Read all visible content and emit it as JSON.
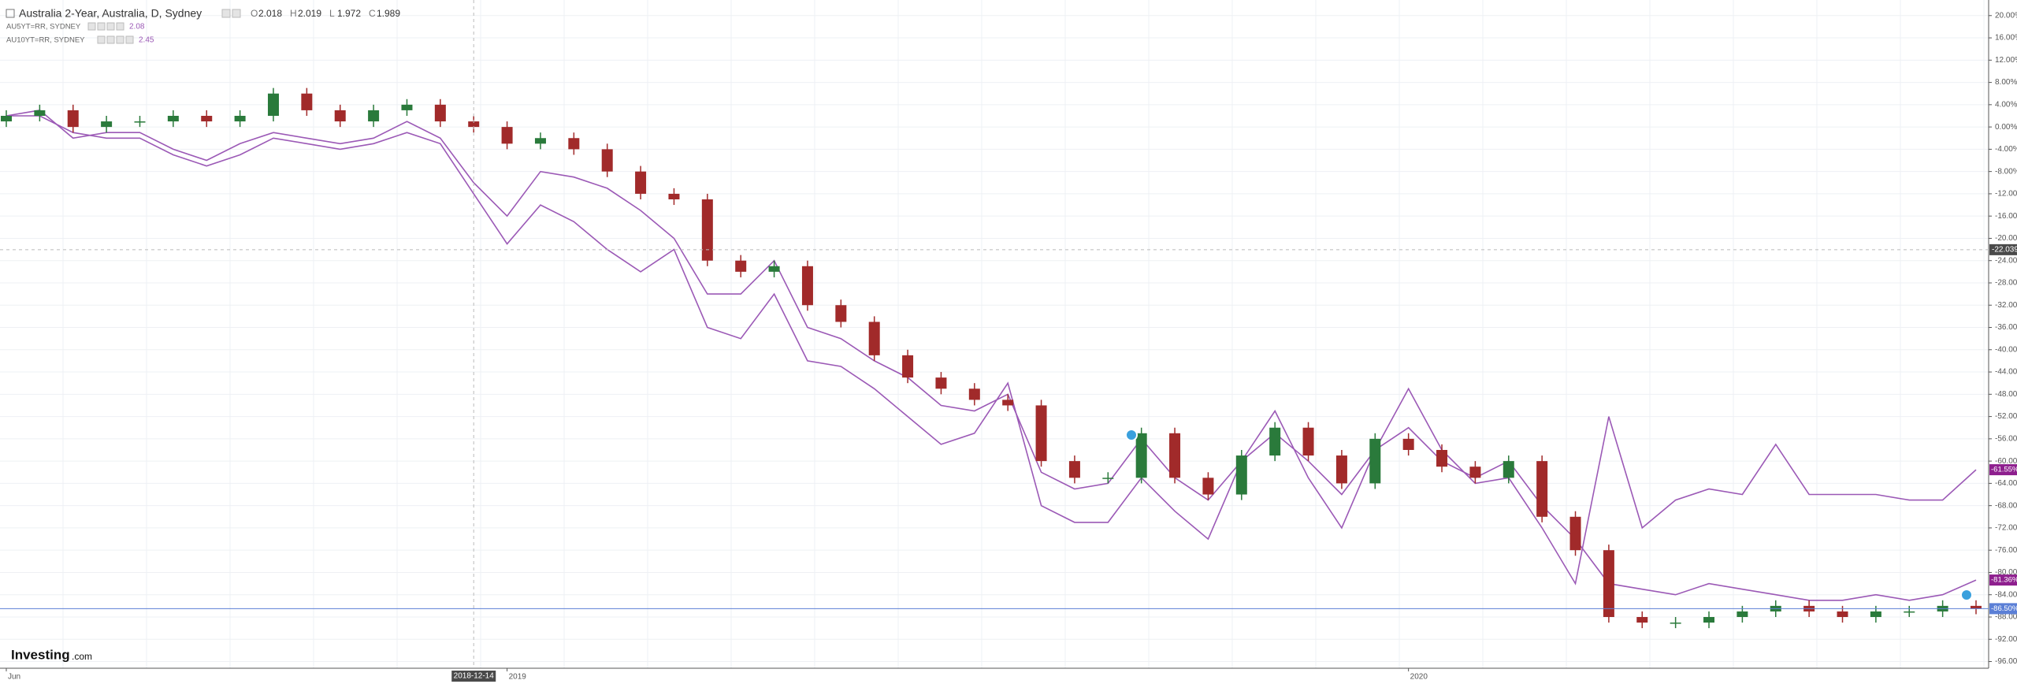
{
  "chart_data": {
    "type": "candlestick",
    "title": "Australia 2-Year, Australia, D, Sydney",
    "ohlc_header": [
      {
        "label": "O",
        "value": 2.018
      },
      {
        "label": "H",
        "value": 2.019
      },
      {
        "label": "L",
        "value": 1.972
      },
      {
        "label": "C",
        "value": 1.989
      }
    ],
    "categories": [
      "Jun",
      null,
      null,
      null,
      null,
      null,
      null,
      null,
      null,
      null,
      null,
      null,
      null,
      null,
      "2018-12-14",
      "2019",
      null,
      null,
      null,
      null,
      null,
      null,
      null,
      null,
      null,
      null,
      null,
      null,
      null,
      null,
      null,
      null,
      null,
      null,
      null,
      null,
      null,
      null,
      null,
      null,
      null,
      null,
      "2020",
      null,
      null,
      null,
      null,
      null,
      null,
      null,
      null,
      null,
      null,
      null,
      null,
      null,
      null,
      null,
      null,
      null
    ],
    "candles": {
      "open": [
        1,
        2,
        3,
        0,
        1,
        1,
        2,
        1,
        2,
        6,
        3,
        1,
        3,
        4,
        1,
        0,
        -3,
        -2,
        -4,
        -8,
        -12,
        -13,
        -24,
        -26,
        -25,
        -32,
        -35,
        -41,
        -45,
        -47,
        -49,
        -50,
        -60,
        -63,
        -63,
        -55,
        -63,
        -66,
        -59,
        -54,
        -59,
        -64,
        -56,
        -58,
        -61,
        -63,
        -60,
        -70,
        -76,
        -88,
        -89,
        -89,
        -88,
        -87,
        -86,
        -87,
        -88,
        -87,
        -87,
        -86
      ],
      "high": [
        3,
        4,
        4,
        2,
        2,
        3,
        3,
        3,
        7,
        7,
        4,
        4,
        5,
        5,
        2,
        1,
        -1,
        -1,
        -3,
        -7,
        -11,
        -12,
        -23,
        -24,
        -24,
        -31,
        -34,
        -40,
        -44,
        -46,
        -48,
        -49,
        -59,
        -62,
        -54,
        -54,
        -62,
        -58,
        -53,
        -53,
        -58,
        -55,
        -55,
        -57,
        -60,
        -59,
        -59,
        -69,
        -75,
        -87,
        -88,
        -87,
        -86,
        -85,
        -85,
        -86,
        -86,
        -86,
        -85,
        -85
      ],
      "low": [
        0,
        1,
        -1,
        -1,
        0,
        0,
        0,
        0,
        1,
        2,
        0,
        0,
        2,
        0,
        -1,
        -4,
        -4,
        -5,
        -9,
        -13,
        -14,
        -25,
        -27,
        -27,
        -33,
        -36,
        -42,
        -46,
        -48,
        -50,
        -51,
        -61,
        -64,
        -64,
        -64,
        -64,
        -67,
        -67,
        -60,
        -60,
        -65,
        -65,
        -59,
        -62,
        -64,
        -64,
        -71,
        -77,
        -89,
        -90,
        -90,
        -90,
        -89,
        -88,
        -88,
        -89,
        -89,
        -88,
        -88,
        -87.5
      ],
      "close": [
        2,
        3,
        0,
        1,
        1,
        2,
        1,
        2,
        6,
        3,
        1,
        3,
        4,
        1,
        0,
        -3,
        -2,
        -4,
        -8,
        -12,
        -13,
        -24,
        -26,
        -25,
        -32,
        -35,
        -41,
        -45,
        -47,
        -49,
        -50,
        -60,
        -63,
        -63,
        -55,
        -63,
        -66,
        -59,
        -54,
        -59,
        -64,
        -56,
        -58,
        -61,
        -63,
        -60,
        -70,
        -76,
        -88,
        -89,
        -89,
        -88,
        -87,
        -86,
        -87,
        -88,
        -87,
        -87,
        -86,
        -86.5
      ],
      "up_color": "#2a7a3b",
      "down_color": "#a12a2a",
      "last_label": "-86.50%",
      "label_color": "#5b7fd6"
    },
    "series": [
      {
        "name": "AU5YT=RR, SYDNEY",
        "legend_value": 2.08,
        "color": "#9b59b6",
        "label_color": "#8e1f8e",
        "last_label": "-81.36%",
        "values": [
          2,
          3,
          -2,
          -1,
          -1,
          -4,
          -6,
          -3,
          -1,
          -2,
          -3,
          -2,
          1,
          -2,
          -10,
          -16,
          -8,
          -9,
          -11,
          -15,
          -20,
          -30,
          -30,
          -24,
          -36,
          -38,
          -42,
          -45,
          -50,
          -51,
          -48,
          -62,
          -65,
          -64,
          -56,
          -63,
          -67,
          -60,
          -55,
          -60,
          -66,
          -58,
          -54,
          -60,
          -63,
          -60,
          -68,
          -74,
          -82,
          -83,
          -84,
          -82,
          -83,
          -84,
          -85,
          -85,
          -84,
          -85,
          -84,
          -81.36
        ]
      },
      {
        "name": "AU10YT=RR, SYDNEY",
        "legend_value": 2.45,
        "color": "#9b59b6",
        "label_color": "#8e1f8e",
        "last_label": "-61.55%",
        "values": [
          2,
          2,
          -1,
          -2,
          -2,
          -5,
          -7,
          -5,
          -2,
          -3,
          -4,
          -3,
          -1,
          -3,
          -12,
          -21,
          -14,
          -17,
          -22,
          -26,
          -22,
          -36,
          -38,
          -30,
          -42,
          -43,
          -47,
          -52,
          -57,
          -55,
          -46,
          -68,
          -71,
          -71,
          -63,
          -69,
          -74,
          -60,
          -51,
          -63,
          -72,
          -58,
          -47,
          -58,
          -64,
          -63,
          -72,
          -82,
          -52,
          -72,
          -67,
          -65,
          -66,
          -57,
          -66,
          -66,
          -66,
          -67,
          -67,
          -61.55
        ]
      }
    ],
    "crosshair_y": -22.039,
    "ylim": [
      -97.2,
      22.8
    ],
    "yticks": [
      {
        "value": 20,
        "label": "20.00%"
      },
      {
        "value": 16,
        "label": "16.00%"
      },
      {
        "value": 12,
        "label": "12.00%"
      },
      {
        "value": 8,
        "label": "8.00%"
      },
      {
        "value": 4,
        "label": "4.00%"
      },
      {
        "value": 0,
        "label": "0.00%"
      },
      {
        "value": -4,
        "label": "-4.00%"
      },
      {
        "value": -8,
        "label": "-8.00%"
      },
      {
        "value": -12,
        "label": "-12.00%"
      },
      {
        "value": -16,
        "label": "-16.00%"
      },
      {
        "value": -20,
        "label": "-20.00%"
      },
      {
        "value": -24,
        "label": "-24.00%"
      },
      {
        "value": -28,
        "label": "-28.00%"
      },
      {
        "value": -32,
        "label": "-32.00%"
      },
      {
        "value": -36,
        "label": "-36.00%"
      },
      {
        "value": -40,
        "label": "-40.00%"
      },
      {
        "value": -44,
        "label": "-44.00%"
      },
      {
        "value": -48,
        "label": "-48.00%"
      },
      {
        "value": -52,
        "label": "-52.00%"
      },
      {
        "value": -56,
        "label": "-56.00%"
      },
      {
        "value": -60,
        "label": "-60.00%"
      },
      {
        "value": -64,
        "label": "-64.00%"
      },
      {
        "value": -68,
        "label": "-68.00%"
      },
      {
        "value": -72,
        "label": "-72.00%"
      },
      {
        "value": -76,
        "label": "-76.00%"
      },
      {
        "value": -80,
        "label": "-80.00%"
      },
      {
        "value": -84,
        "label": "-84.00%"
      },
      {
        "value": -88,
        "label": "-88.00%"
      },
      {
        "value": -92,
        "label": "-92.00%"
      },
      {
        "value": -96,
        "label": "-96.00%"
      }
    ],
    "grid": true,
    "watermark": "Investing",
    "watermark_suffix": ".com"
  }
}
